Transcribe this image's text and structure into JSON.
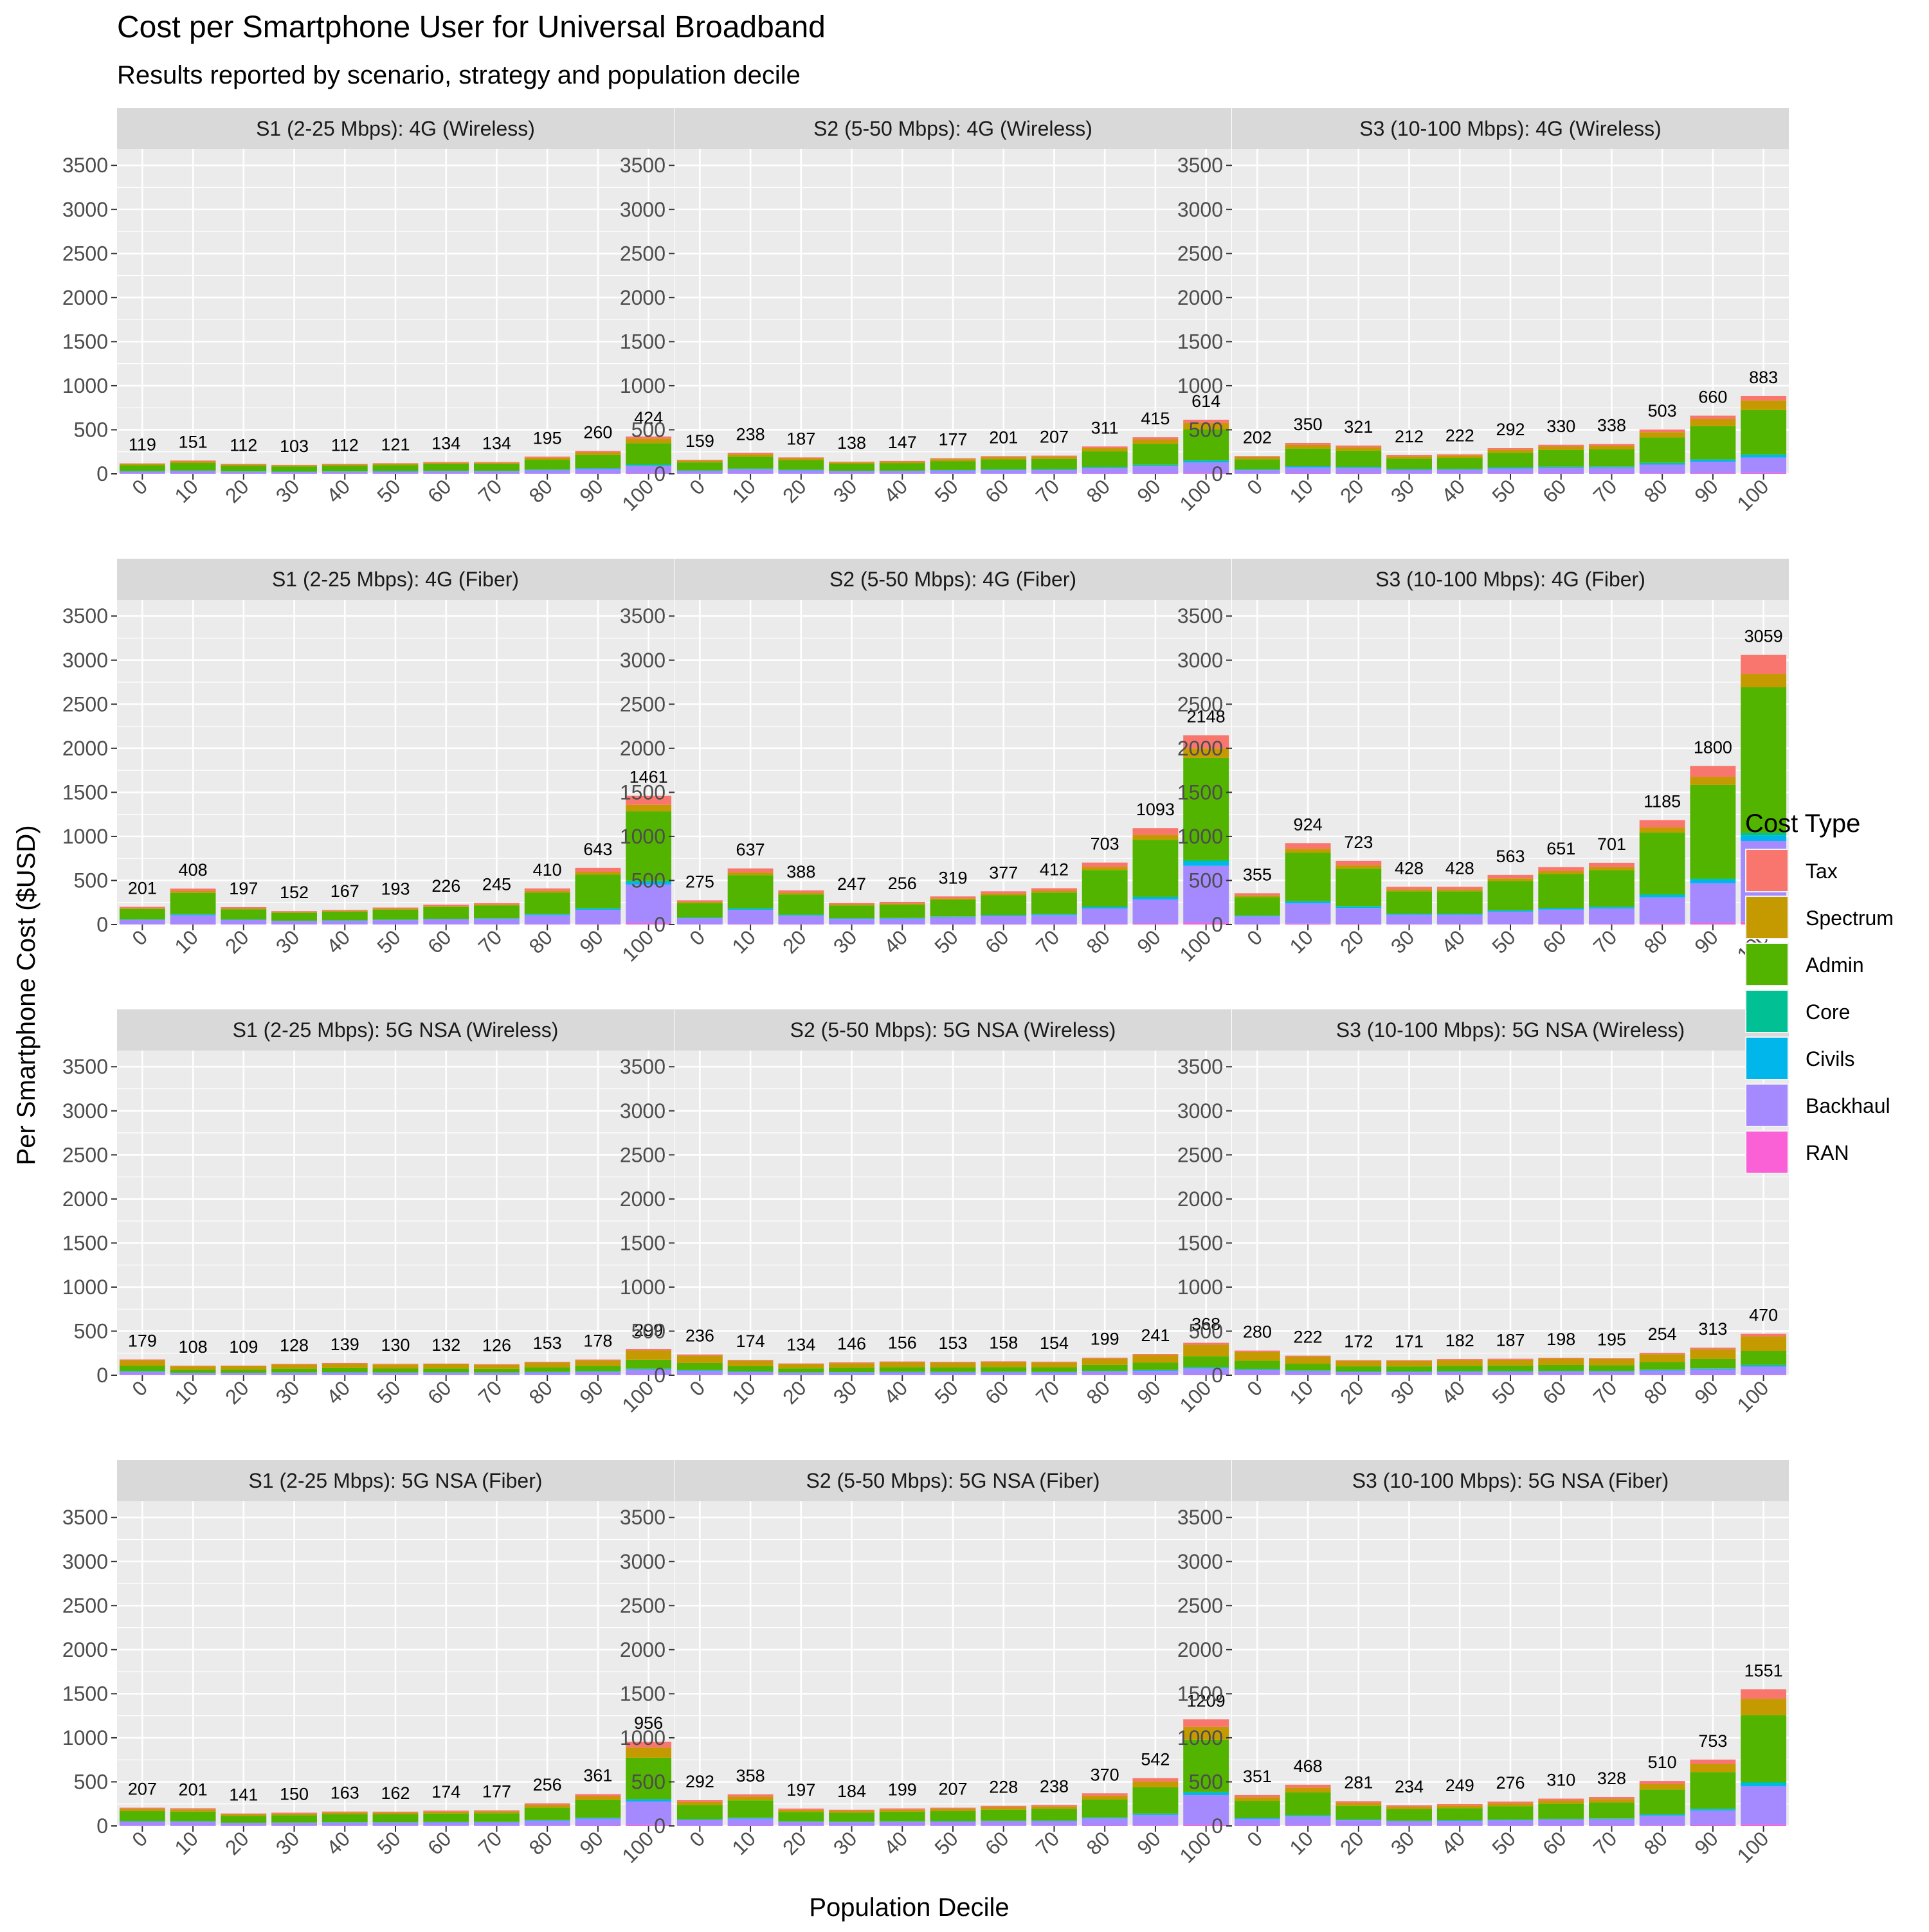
{
  "chart_data": {
    "type": "bar",
    "stacked": true,
    "title": "Cost per Smartphone User for Universal Broadband",
    "subtitle": "Results reported by scenario, strategy and population decile",
    "xlabel": "Population Decile",
    "ylabel": "Per Smartphone Cost ($USD)",
    "ylim": [
      0,
      3500
    ],
    "yticks": [
      0,
      500,
      1000,
      1500,
      2000,
      2500,
      3000,
      3500
    ],
    "grid": true,
    "categories": [
      "0",
      "10",
      "20",
      "30",
      "40",
      "50",
      "60",
      "70",
      "80",
      "90",
      "100"
    ],
    "legend": {
      "title": "Cost Type",
      "position": "right",
      "items": [
        {
          "name": "Tax",
          "color": "#F8766D"
        },
        {
          "name": "Spectrum",
          "color": "#C49A00"
        },
        {
          "name": "Admin",
          "color": "#53B400"
        },
        {
          "name": "Core",
          "color": "#00C094"
        },
        {
          "name": "Civils",
          "color": "#00B6EB"
        },
        {
          "name": "Backhaul",
          "color": "#A58AFF"
        },
        {
          "name": "RAN",
          "color": "#FB61D7"
        }
      ]
    },
    "stack_order_bottom_to_top": [
      "RAN",
      "Backhaul",
      "Civils",
      "Core",
      "Admin",
      "Spectrum",
      "Tax"
    ],
    "panels": [
      {
        "title": "S1 (2-25 Mbps): 4G (Wireless)",
        "totals": [
          119,
          151,
          112,
          103,
          112,
          121,
          134,
          134,
          195,
          260,
          424
        ]
      },
      {
        "title": "S2 (5-50 Mbps): 4G (Wireless)",
        "totals": [
          159,
          238,
          187,
          138,
          147,
          177,
          201,
          207,
          311,
          415,
          614
        ]
      },
      {
        "title": "S3 (10-100 Mbps): 4G (Wireless)",
        "totals": [
          202,
          350,
          321,
          212,
          222,
          292,
          330,
          338,
          503,
          660,
          883
        ]
      },
      {
        "title": "S1 (2-25 Mbps): 4G (Fiber)",
        "totals": [
          201,
          408,
          197,
          152,
          167,
          193,
          226,
          245,
          410,
          643,
          1461
        ]
      },
      {
        "title": "S2 (5-50 Mbps): 4G (Fiber)",
        "totals": [
          275,
          637,
          388,
          247,
          256,
          319,
          377,
          412,
          703,
          1093,
          2148
        ]
      },
      {
        "title": "S3 (10-100 Mbps): 4G (Fiber)",
        "totals": [
          355,
          924,
          723,
          428,
          428,
          563,
          651,
          701,
          1185,
          1800,
          3059
        ]
      },
      {
        "title": "S1 (2-25 Mbps): 5G NSA (Wireless)",
        "totals": [
          179,
          108,
          109,
          128,
          139,
          130,
          132,
          126,
          153,
          178,
          299
        ]
      },
      {
        "title": "S2 (5-50 Mbps): 5G NSA (Wireless)",
        "totals": [
          236,
          174,
          134,
          146,
          156,
          153,
          158,
          154,
          199,
          241,
          368
        ]
      },
      {
        "title": "S3 (10-100 Mbps): 5G NSA (Wireless)",
        "totals": [
          280,
          222,
          172,
          171,
          182,
          187,
          198,
          195,
          254,
          313,
          470
        ]
      },
      {
        "title": "S1 (2-25 Mbps): 5G NSA (Fiber)",
        "totals": [
          207,
          201,
          141,
          150,
          163,
          162,
          174,
          177,
          256,
          361,
          956
        ]
      },
      {
        "title": "S2 (5-50 Mbps): 5G NSA (Fiber)",
        "totals": [
          292,
          358,
          197,
          184,
          199,
          207,
          228,
          238,
          370,
          542,
          1209
        ]
      },
      {
        "title": "S3 (10-100 Mbps): 5G NSA (Fiber)",
        "totals": [
          351,
          468,
          281,
          234,
          249,
          276,
          310,
          328,
          510,
          753,
          1551
        ]
      }
    ],
    "notes": "Per-component stack heights are visual estimates; totals are the printed data labels."
  }
}
